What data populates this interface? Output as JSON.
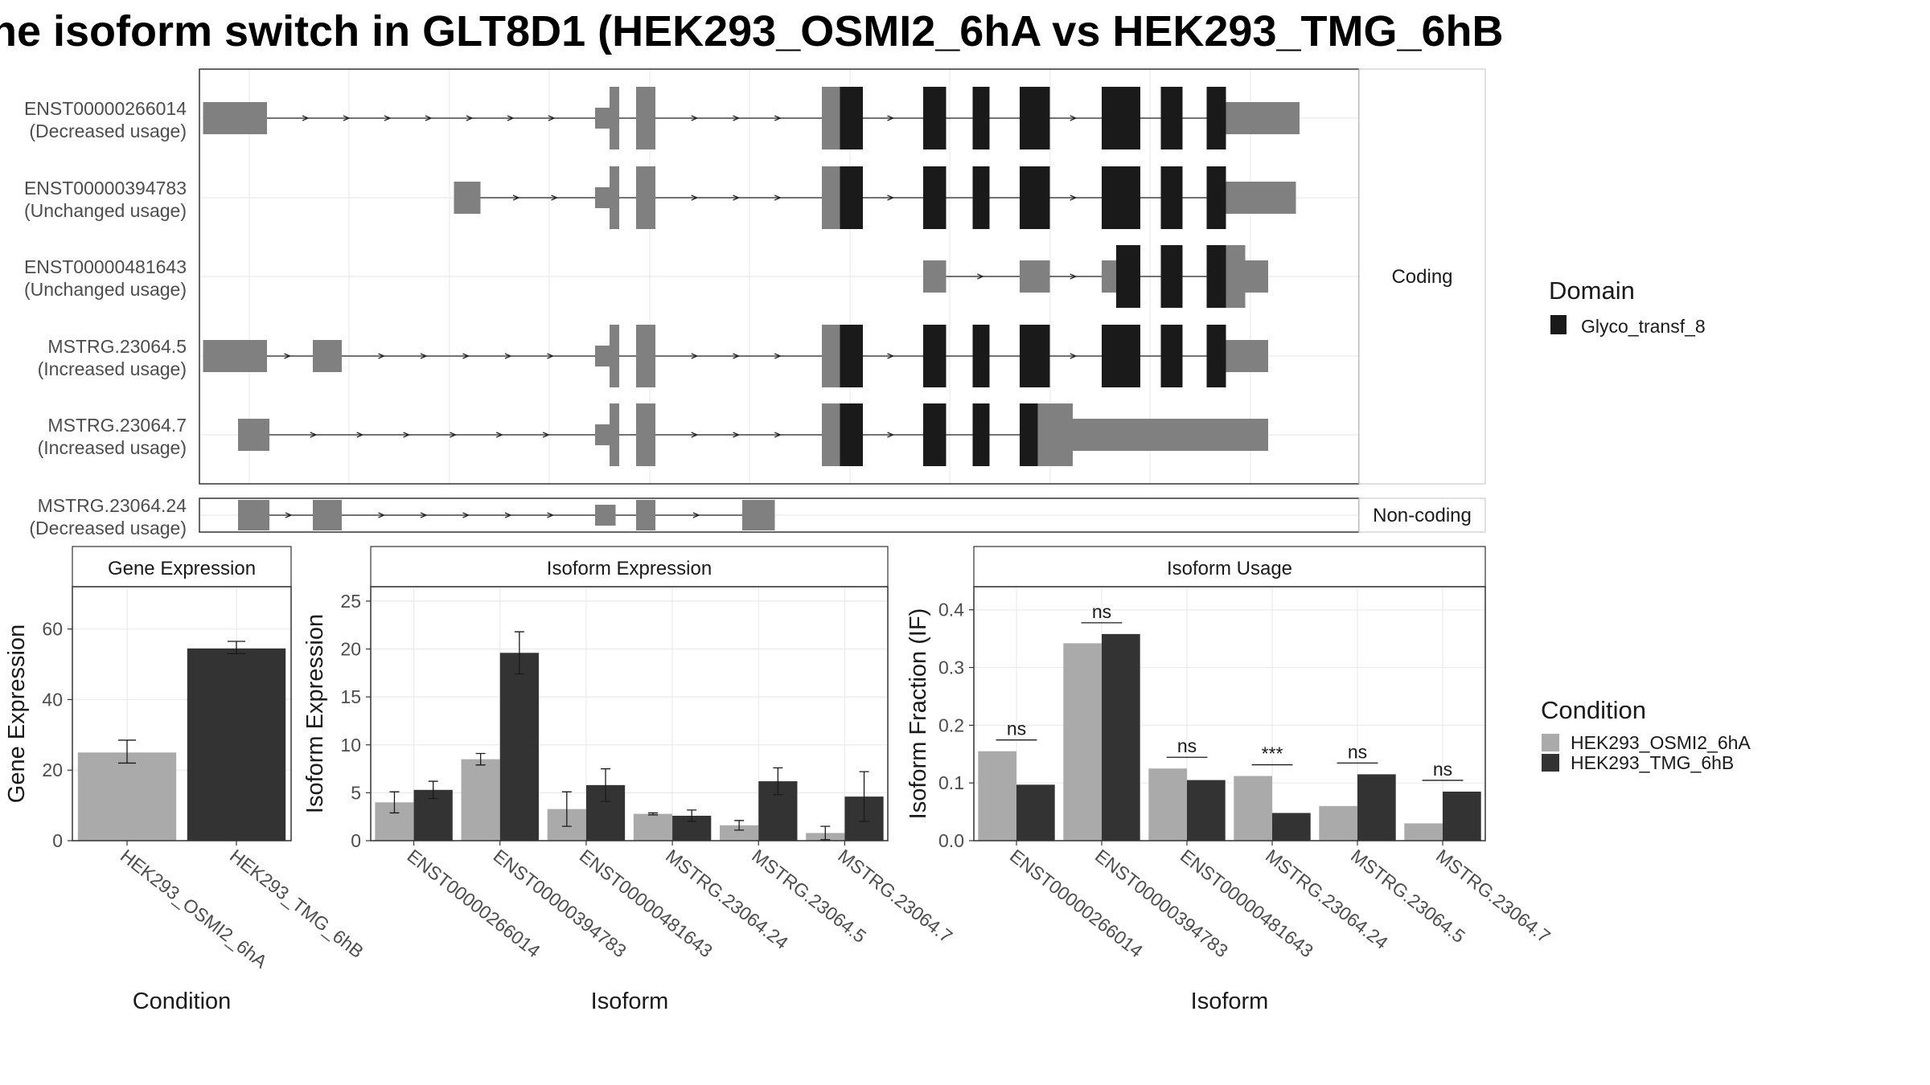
{
  "title": "he isoform switch in GLT8D1 (HEK293_OSMI2_6hA vs HEK293_TMG_6hB",
  "colors": {
    "exon_utr": "#808080",
    "domain": "#1a1a1a",
    "cond_a": "#aaaaaa",
    "cond_b": "#333333",
    "panel_border": "#333333",
    "strip_bg": "#ffffff",
    "grid": "#ebebeb"
  },
  "structure": {
    "strips": [
      "Coding",
      "Non-coding"
    ],
    "legend": {
      "title": "Domain",
      "items": [
        "Glyco_transf_8"
      ]
    },
    "transcripts": [
      {
        "id": "ENST00000266014",
        "usage": "(Decreased usage)",
        "group": "Coding",
        "exons": [
          [
            3,
            56,
            "u"
          ],
          [
            328,
            340,
            "u"
          ],
          [
            340,
            348,
            "u"
          ],
          [
            362,
            378,
            "u"
          ],
          [
            516,
            531,
            "u"
          ],
          [
            531,
            550,
            "d"
          ],
          [
            600,
            619,
            "d"
          ],
          [
            641,
            655,
            "d"
          ],
          [
            680,
            705,
            "d"
          ],
          [
            748,
            780,
            "d"
          ],
          [
            797,
            815,
            "d"
          ],
          [
            835,
            851,
            "d"
          ],
          [
            851,
            867,
            "u"
          ],
          [
            867,
            912,
            "u"
          ]
        ]
      },
      {
        "id": "ENST00000394783",
        "usage": "(Unchanged usage)",
        "group": "Coding",
        "exons": [
          [
            211,
            233,
            "u"
          ],
          [
            328,
            340,
            "u"
          ],
          [
            340,
            348,
            "u"
          ],
          [
            362,
            378,
            "u"
          ],
          [
            516,
            531,
            "u"
          ],
          [
            531,
            550,
            "d"
          ],
          [
            600,
            619,
            "d"
          ],
          [
            641,
            655,
            "d"
          ],
          [
            680,
            705,
            "d"
          ],
          [
            748,
            780,
            "d"
          ],
          [
            797,
            815,
            "d"
          ],
          [
            835,
            851,
            "d"
          ],
          [
            851,
            867,
            "u"
          ],
          [
            867,
            909,
            "u"
          ]
        ]
      },
      {
        "id": "ENST00000481643",
        "usage": "(Unchanged usage)",
        "group": "Coding",
        "exons": [
          [
            600,
            619,
            "u"
          ],
          [
            680,
            705,
            "u"
          ],
          [
            748,
            760,
            "u"
          ],
          [
            760,
            765,
            "d"
          ],
          [
            765,
            780,
            "d"
          ],
          [
            797,
            815,
            "d"
          ],
          [
            835,
            851,
            "d"
          ],
          [
            851,
            867,
            "u"
          ],
          [
            867,
            886,
            "u"
          ]
        ]
      },
      {
        "id": "MSTRG.23064.5",
        "usage": "(Increased usage)",
        "group": "Coding",
        "exons": [
          [
            3,
            56,
            "u"
          ],
          [
            94,
            118,
            "u"
          ],
          [
            328,
            340,
            "u"
          ],
          [
            340,
            348,
            "u"
          ],
          [
            362,
            378,
            "u"
          ],
          [
            516,
            531,
            "u"
          ],
          [
            531,
            550,
            "d"
          ],
          [
            600,
            619,
            "d"
          ],
          [
            641,
            655,
            "d"
          ],
          [
            680,
            705,
            "d"
          ],
          [
            748,
            780,
            "d"
          ],
          [
            797,
            815,
            "d"
          ],
          [
            835,
            851,
            "d"
          ],
          [
            851,
            867,
            "u"
          ],
          [
            867,
            886,
            "u"
          ]
        ]
      },
      {
        "id": "MSTRG.23064.7",
        "usage": "(Increased usage)",
        "group": "Coding",
        "exons": [
          [
            32,
            58,
            "u"
          ],
          [
            328,
            340,
            "u"
          ],
          [
            340,
            348,
            "u"
          ],
          [
            362,
            378,
            "u"
          ],
          [
            516,
            531,
            "u"
          ],
          [
            531,
            550,
            "d"
          ],
          [
            600,
            619,
            "d"
          ],
          [
            641,
            655,
            "d"
          ],
          [
            680,
            695,
            "d"
          ],
          [
            695,
            724,
            "u"
          ],
          [
            724,
            886,
            "u"
          ]
        ]
      },
      {
        "id": "MSTRG.23064.24",
        "usage": "(Decreased usage)",
        "group": "Non-coding",
        "exons": [
          [
            32,
            58,
            "u"
          ],
          [
            94,
            118,
            "u"
          ],
          [
            328,
            345,
            "u"
          ],
          [
            362,
            378,
            "u"
          ],
          [
            450,
            477,
            "u"
          ]
        ]
      }
    ]
  },
  "chart_data": [
    {
      "type": "bar",
      "panel_title": "Gene Expression",
      "xlabel": "Condition",
      "ylabel": "Gene Expression",
      "categories": [
        "HEK293_OSMI2_6hA",
        "HEK293_TMG_6hB"
      ],
      "values": [
        25,
        54.5
      ],
      "error": [
        [
          22,
          28.5
        ],
        [
          53,
          56.5
        ]
      ],
      "ylim": [
        0,
        72
      ],
      "yticks": [
        "0",
        "20",
        "40",
        "60"
      ]
    },
    {
      "type": "bar",
      "panel_title": "Isoform Expression",
      "xlabel": "Isoform",
      "ylabel": "Isoform Expression",
      "categories": [
        "ENST00000266014",
        "ENST00000394783",
        "ENST00000481643",
        "MSTRG.23064.24",
        "MSTRG.23064.5",
        "MSTRG.23064.7"
      ],
      "series": [
        {
          "name": "HEK293_OSMI2_6hA",
          "values": [
            4,
            8.5,
            3.3,
            2.8,
            1.6,
            0.8
          ],
          "error": [
            [
              2.9,
              5.1
            ],
            [
              7.9,
              9.1
            ],
            [
              1.5,
              5.1
            ],
            [
              2.7,
              2.9
            ],
            [
              1.1,
              2.1
            ],
            [
              0.1,
              1.5
            ]
          ]
        },
        {
          "name": "HEK293_TMG_6hB",
          "values": [
            5.3,
            19.6,
            5.8,
            2.6,
            6.2,
            4.6
          ],
          "error": [
            [
              4.4,
              6.2
            ],
            [
              17.4,
              21.8
            ],
            [
              4.1,
              7.5
            ],
            [
              2.0,
              3.2
            ],
            [
              4.8,
              7.6
            ],
            [
              2.0,
              7.2
            ]
          ]
        }
      ],
      "ylim": [
        0,
        26.5
      ],
      "yticks": [
        "0",
        "5",
        "10",
        "15",
        "20",
        "25"
      ]
    },
    {
      "type": "bar",
      "panel_title": "Isoform Usage",
      "xlabel": "Isoform",
      "ylabel": "Isoform Fraction (IF)",
      "categories": [
        "ENST00000266014",
        "ENST00000394783",
        "ENST00000481643",
        "MSTRG.23064.24",
        "MSTRG.23064.5",
        "MSTRG.23064.7"
      ],
      "series": [
        {
          "name": "HEK293_OSMI2_6hA",
          "values": [
            0.155,
            0.342,
            0.125,
            0.112,
            0.06,
            0.03
          ]
        },
        {
          "name": "HEK293_TMG_6hB",
          "values": [
            0.097,
            0.358,
            0.105,
            0.048,
            0.115,
            0.085
          ]
        }
      ],
      "significance": [
        "ns",
        "ns",
        "ns",
        "***",
        "ns",
        "ns"
      ],
      "ylim": [
        0,
        0.44
      ],
      "yticks": [
        "0.0",
        "0.1",
        "0.2",
        "0.3",
        "0.4"
      ]
    }
  ],
  "condition_legend": {
    "title": "Condition",
    "items": [
      "HEK293_OSMI2_6hA",
      "HEK293_TMG_6hB"
    ]
  }
}
